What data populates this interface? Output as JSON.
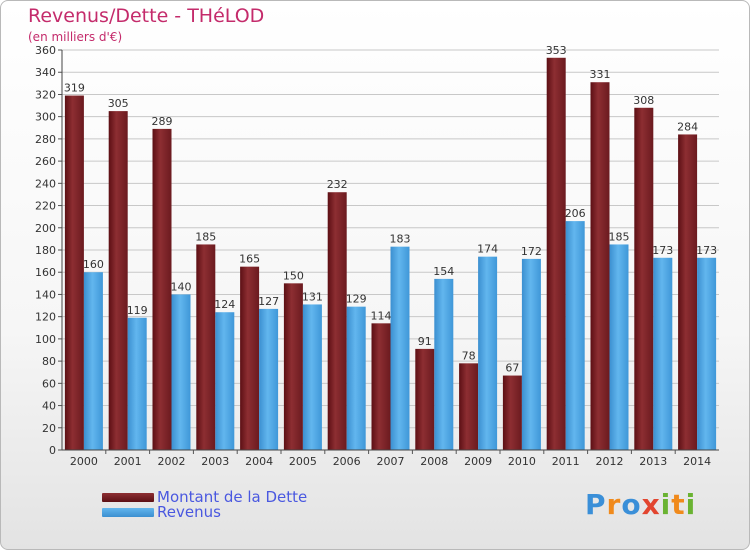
{
  "title": "Revenus/Dette - THéLOD",
  "subtitle": "(en milliers d'€)",
  "chart_data": {
    "type": "bar",
    "categories": [
      "2000",
      "2001",
      "2002",
      "2003",
      "2004",
      "2005",
      "2006",
      "2007",
      "2008",
      "2009",
      "2010",
      "2011",
      "2012",
      "2013",
      "2014"
    ],
    "series": [
      {
        "name": "Montant de la Dette",
        "values": [
          319,
          305,
          289,
          185,
          165,
          150,
          232,
          114,
          91,
          78,
          67,
          353,
          331,
          308,
          284
        ],
        "color": "#7a1f24"
      },
      {
        "name": "Revenus",
        "values": [
          160,
          119,
          140,
          124,
          127,
          131,
          129,
          183,
          154,
          174,
          172,
          206,
          185,
          173,
          173
        ],
        "color": "#4ea8e6"
      }
    ],
    "ylim": [
      0,
      360
    ],
    "ytick_step": 20,
    "grid": true,
    "legend": "bottom-left"
  },
  "legend": [
    {
      "label": "Montant de la Dette",
      "color": "#7a1f24"
    },
    {
      "label": "Revenus",
      "color": "#4ea8e6"
    }
  ],
  "logo": {
    "letters": [
      "P",
      "r",
      "o",
      "x",
      "i",
      "t",
      "i"
    ],
    "colors": [
      "#3a8fd8",
      "#f08a1c",
      "#3a8fd8",
      "#e2452f",
      "#6ab332",
      "#f08a1c",
      "#6ab332"
    ]
  }
}
